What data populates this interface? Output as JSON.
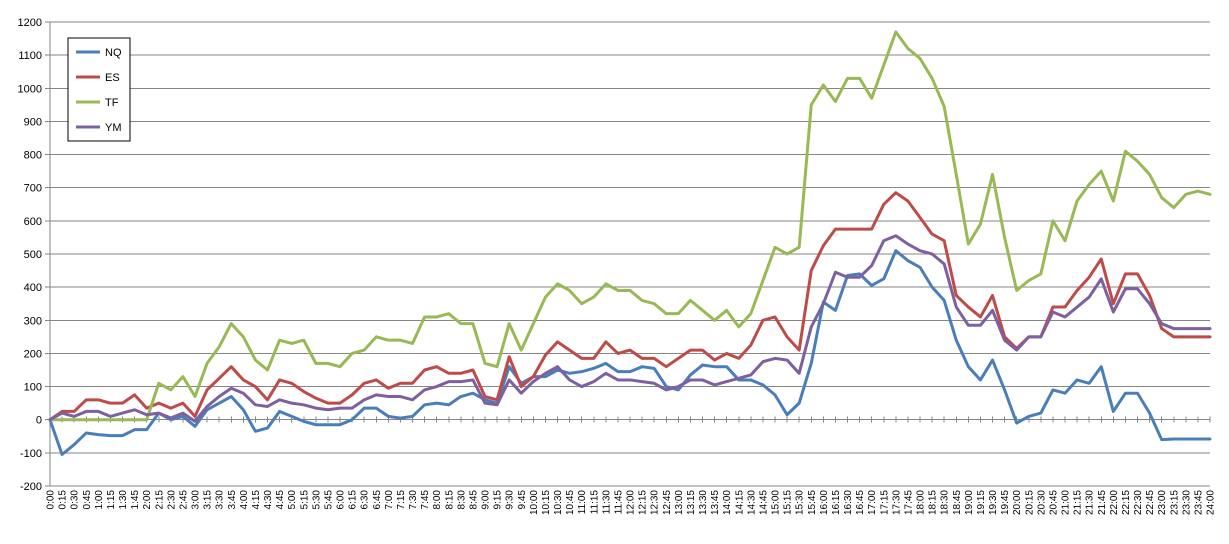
{
  "chart_data": {
    "type": "line",
    "title": "",
    "xlabel": "",
    "ylabel": "",
    "ylim": [
      -200,
      1200
    ],
    "yticks": [
      -200,
      -100,
      0,
      100,
      200,
      300,
      400,
      500,
      600,
      700,
      800,
      900,
      1000,
      1100,
      1200
    ],
    "grid": "horizontal",
    "legend_position": "top-left",
    "x": [
      "0:00",
      "0:15",
      "0:30",
      "0:45",
      "1:00",
      "1:15",
      "1:30",
      "1:45",
      "2:00",
      "2:15",
      "2:30",
      "2:45",
      "3:00",
      "3:15",
      "3:30",
      "3:45",
      "4:00",
      "4:15",
      "4:30",
      "4:45",
      "5:00",
      "5:15",
      "5:30",
      "5:45",
      "6:00",
      "6:15",
      "6:30",
      "6:45",
      "7:00",
      "7:15",
      "7:30",
      "7:45",
      "8:00",
      "8:15",
      "8:30",
      "8:45",
      "9:00",
      "9:15",
      "9:30",
      "9:45",
      "10:00",
      "10:15",
      "10:30",
      "10:45",
      "11:00",
      "11:15",
      "11:30",
      "11:45",
      "12:00",
      "12:15",
      "12:30",
      "12:45",
      "13:00",
      "13:15",
      "13:30",
      "13:45",
      "14:00",
      "14:15",
      "14:30",
      "14:45",
      "15:00",
      "15:15",
      "15:30",
      "15:45",
      "16:00",
      "16:15",
      "16:30",
      "16:45",
      "17:00",
      "17:15",
      "17:30",
      "17:45",
      "18:00",
      "18:15",
      "18:30",
      "18:45",
      "19:00",
      "19:15",
      "19:30",
      "19:45",
      "20:00",
      "20:15",
      "20:30",
      "20:45",
      "21:00",
      "21:15",
      "21:30",
      "21:45",
      "22:00",
      "22:15",
      "22:30",
      "22:45",
      "23:00",
      "23:15",
      "23:30",
      "23:45",
      "24:00"
    ],
    "series": [
      {
        "name": "NQ",
        "color": "#4a7ebb",
        "values": [
          0,
          -105,
          -75,
          -40,
          -45,
          -48,
          -48,
          -30,
          -30,
          20,
          0,
          10,
          -20,
          30,
          50,
          70,
          30,
          -35,
          -25,
          25,
          10,
          -5,
          -15,
          -15,
          -15,
          0,
          35,
          35,
          10,
          5,
          10,
          45,
          50,
          45,
          70,
          80,
          60,
          50,
          160,
          110,
          130,
          130,
          150,
          140,
          145,
          155,
          170,
          145,
          145,
          160,
          155,
          100,
          90,
          135,
          165,
          160,
          160,
          120,
          120,
          105,
          75,
          15,
          50,
          170,
          355,
          330,
          435,
          440,
          405,
          425,
          510,
          480,
          460,
          400,
          360,
          240,
          160,
          120,
          180,
          90,
          -10,
          10,
          20,
          90,
          80,
          120,
          110,
          160,
          25,
          80,
          80,
          20,
          -60,
          -58,
          -58,
          -58,
          -58
        ]
      },
      {
        "name": "ES",
        "color": "#be4b48",
        "values": [
          0,
          25,
          25,
          60,
          60,
          50,
          50,
          75,
          35,
          50,
          35,
          50,
          10,
          90,
          125,
          160,
          120,
          100,
          60,
          120,
          110,
          85,
          65,
          50,
          50,
          75,
          110,
          120,
          95,
          110,
          110,
          150,
          160,
          140,
          140,
          150,
          70,
          60,
          190,
          100,
          130,
          195,
          235,
          210,
          185,
          185,
          235,
          200,
          210,
          185,
          185,
          160,
          185,
          210,
          210,
          180,
          200,
          185,
          225,
          300,
          310,
          250,
          210,
          450,
          525,
          575,
          575,
          575,
          575,
          650,
          685,
          660,
          610,
          560,
          540,
          375,
          340,
          310,
          375,
          250,
          215,
          250,
          250,
          340,
          340,
          390,
          430,
          485,
          350,
          440,
          440,
          375,
          275,
          250,
          250,
          250,
          250
        ]
      },
      {
        "name": "TF",
        "color": "#98b954",
        "values": [
          0,
          0,
          0,
          0,
          0,
          0,
          0,
          0,
          0,
          110,
          90,
          130,
          70,
          170,
          220,
          290,
          250,
          180,
          150,
          240,
          230,
          240,
          170,
          170,
          160,
          200,
          210,
          250,
          240,
          240,
          230,
          310,
          310,
          320,
          290,
          290,
          170,
          160,
          290,
          210,
          290,
          370,
          410,
          390,
          350,
          370,
          410,
          390,
          390,
          360,
          350,
          320,
          320,
          360,
          330,
          300,
          330,
          280,
          320,
          420,
          520,
          500,
          520,
          950,
          1010,
          960,
          1030,
          1030,
          970,
          1070,
          1170,
          1120,
          1090,
          1030,
          945,
          740,
          530,
          590,
          740,
          550,
          390,
          420,
          440,
          600,
          540,
          660,
          710,
          750,
          660,
          810,
          780,
          740,
          670,
          640,
          680,
          690,
          680
        ]
      },
      {
        "name": "YM",
        "color": "#7d60a0",
        "values": [
          0,
          20,
          10,
          25,
          25,
          10,
          20,
          30,
          15,
          20,
          5,
          20,
          -5,
          40,
          70,
          95,
          80,
          45,
          40,
          60,
          50,
          45,
          35,
          30,
          35,
          35,
          60,
          75,
          70,
          70,
          60,
          90,
          100,
          115,
          115,
          120,
          50,
          45,
          120,
          80,
          115,
          140,
          160,
          120,
          100,
          115,
          140,
          120,
          120,
          115,
          110,
          90,
          100,
          120,
          120,
          105,
          115,
          125,
          135,
          175,
          185,
          180,
          140,
          280,
          350,
          445,
          430,
          430,
          465,
          540,
          555,
          530,
          510,
          500,
          470,
          340,
          285,
          285,
          330,
          240,
          210,
          250,
          250,
          325,
          310,
          340,
          370,
          425,
          325,
          395,
          395,
          350,
          290,
          275,
          275,
          275,
          275
        ]
      }
    ]
  }
}
